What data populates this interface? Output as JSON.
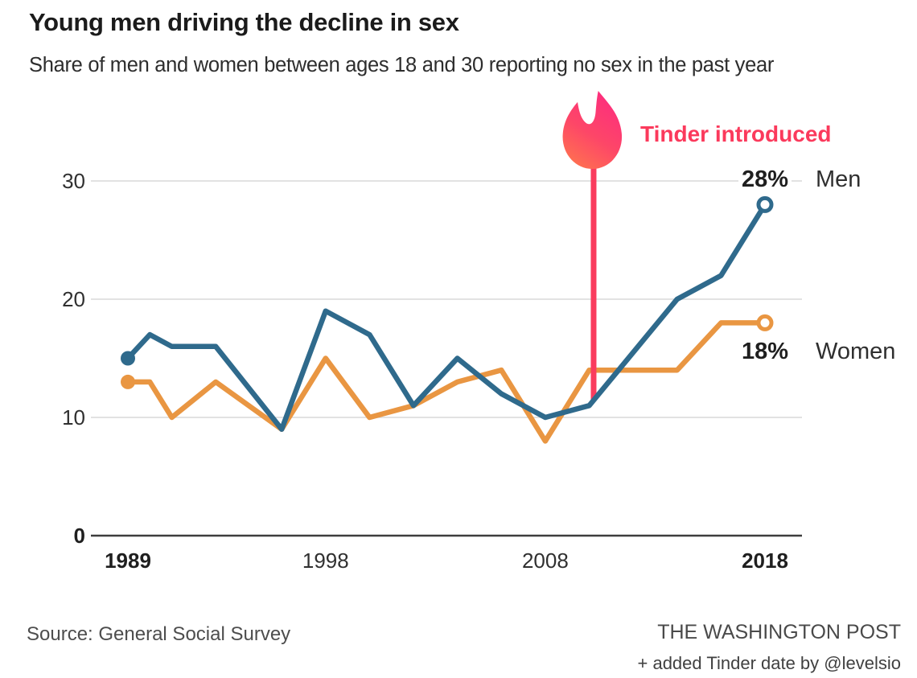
{
  "header": {
    "title": "Young men driving the decline in sex",
    "subtitle": "Share of men and women between ages 18 and 30 reporting no sex in the past year"
  },
  "annotation": {
    "label": "Tinder introduced"
  },
  "end_labels": {
    "men_value": "28%",
    "men_name": "Men",
    "women_value": "18%",
    "women_name": "Women"
  },
  "footer": {
    "source": "Source: General Social Survey",
    "attribution": "THE WASHINGTON POST",
    "credit": "+ added Tinder date by @levelsio"
  },
  "colors": {
    "men": "#2f6a8c",
    "women": "#e99642",
    "accent_pink": "#fa3c5e",
    "grid": "#d8d8d8",
    "axis": "#3d3d3d",
    "flame_top": "#fd2c7f",
    "flame_bottom": "#ff7150"
  },
  "chart_data": {
    "type": "line",
    "title": "Young men driving the decline in sex",
    "subtitle": "Share of men and women between ages 18 and 30 reporting no sex in the past year",
    "xlabel": "",
    "ylabel": "",
    "xlim": [
      1989,
      2018
    ],
    "ylim": [
      0,
      30
    ],
    "grid": true,
    "legend_position": "right-end-labels",
    "x_ticks": [
      {
        "label": "1989",
        "year": 1989,
        "bold": true
      },
      {
        "label": "1998",
        "year": 1998,
        "bold": false
      },
      {
        "label": "2008",
        "year": 2008,
        "bold": false
      },
      {
        "label": "2018",
        "year": 2018,
        "bold": true
      }
    ],
    "y_ticks": [
      {
        "label": "0",
        "value": 0,
        "bold": true
      },
      {
        "label": "10",
        "value": 10,
        "bold": false
      },
      {
        "label": "20",
        "value": 20,
        "bold": false
      },
      {
        "label": "30",
        "value": 30,
        "bold": false
      }
    ],
    "annotation_line_year": 2010.2,
    "series": [
      {
        "name": "Women",
        "color": "#e99642",
        "end_label": "18%",
        "points": [
          [
            1989,
            13
          ],
          [
            1990,
            13
          ],
          [
            1991,
            10
          ],
          [
            1993,
            13
          ],
          [
            1996,
            9
          ],
          [
            1998,
            15
          ],
          [
            2000,
            10
          ],
          [
            2002,
            11
          ],
          [
            2004,
            13
          ],
          [
            2006,
            14
          ],
          [
            2008,
            8
          ],
          [
            2010,
            14
          ],
          [
            2012,
            14
          ],
          [
            2014,
            14
          ],
          [
            2016,
            18
          ],
          [
            2018,
            18
          ]
        ]
      },
      {
        "name": "Men",
        "color": "#2f6a8c",
        "end_label": "28%",
        "points": [
          [
            1989,
            15
          ],
          [
            1990,
            17
          ],
          [
            1991,
            16
          ],
          [
            1993,
            16
          ],
          [
            1996,
            9
          ],
          [
            1998,
            19
          ],
          [
            2000,
            17
          ],
          [
            2002,
            11
          ],
          [
            2004,
            15
          ],
          [
            2006,
            12
          ],
          [
            2008,
            10
          ],
          [
            2010,
            11
          ],
          [
            2014,
            20
          ],
          [
            2016,
            22
          ],
          [
            2018,
            28
          ]
        ]
      }
    ]
  }
}
